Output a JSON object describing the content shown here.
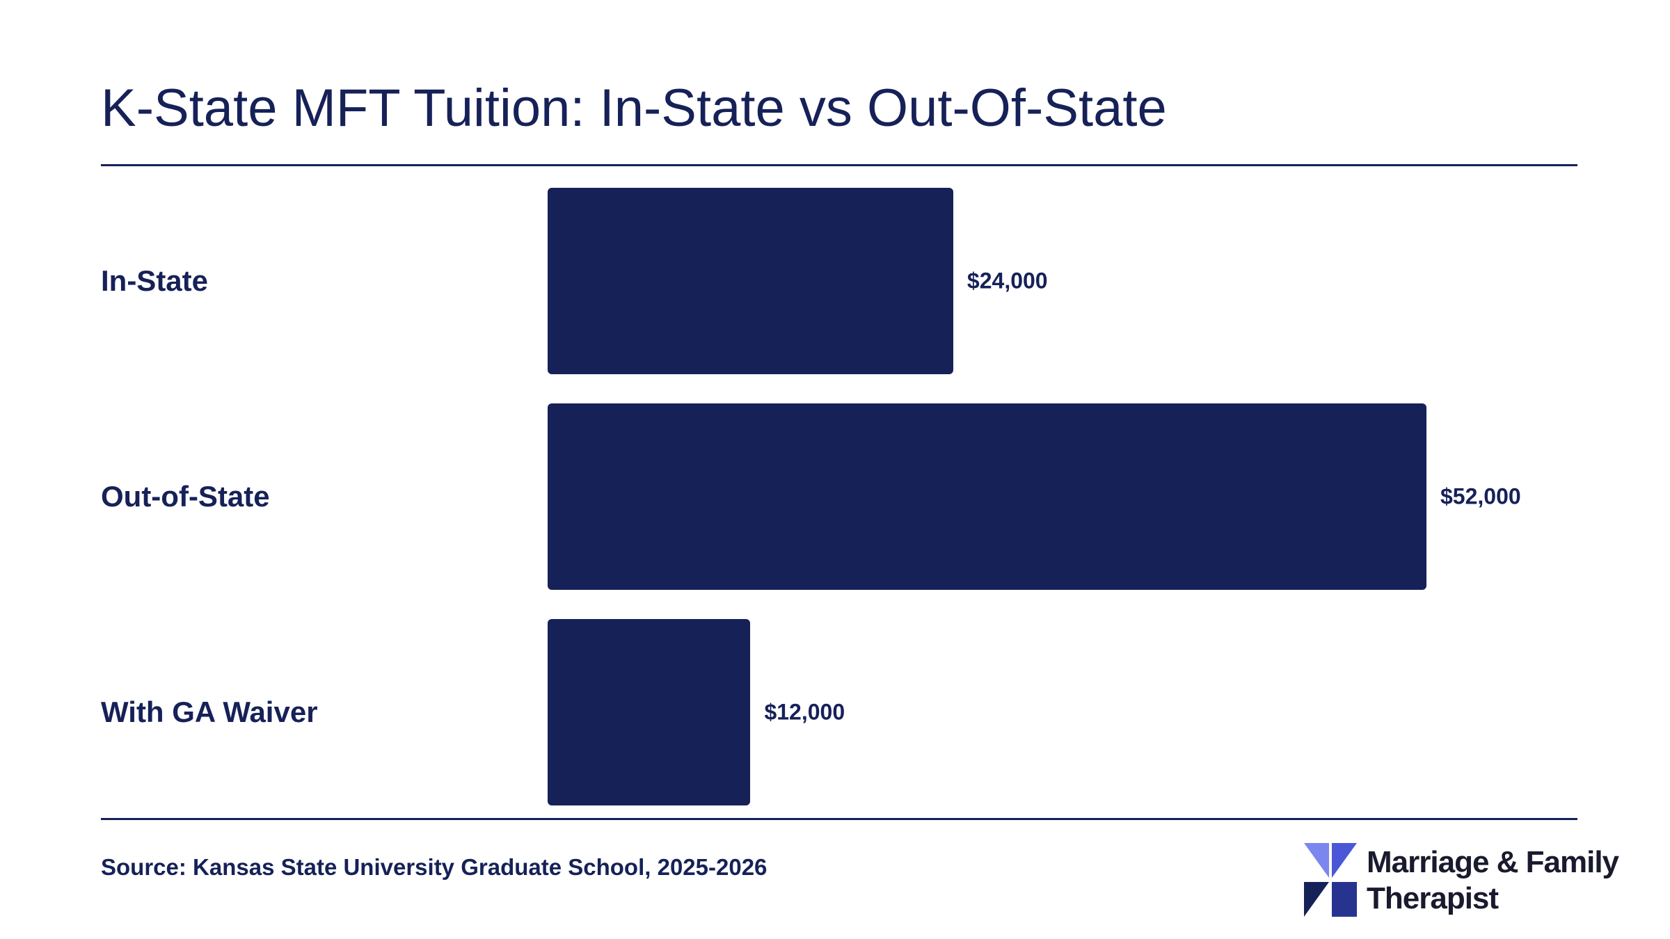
{
  "title": "K-State MFT Tuition: In-State vs Out-Of-State",
  "source": "Source: Kansas State University Graduate School, 2025-2026",
  "logo": {
    "line1": "Marriage & Family",
    "line2": "Therapist",
    "icon": "pinwheel-logo-icon"
  },
  "colors": {
    "bar": "#162158",
    "text": "#162158",
    "logo_light": "#7b86ef",
    "logo_dark": "#27348f"
  },
  "chart_data": {
    "type": "bar",
    "orientation": "horizontal",
    "title": "K-State MFT Tuition: In-State vs Out-Of-State",
    "categories": [
      "In-State",
      "Out-of-State",
      "With GA Waiver"
    ],
    "values": [
      24000,
      52000,
      12000
    ],
    "value_labels": [
      "$24,000",
      "$52,000",
      "$12,000"
    ],
    "xlim": [
      0,
      52000
    ],
    "grid": false,
    "legend": "none"
  }
}
